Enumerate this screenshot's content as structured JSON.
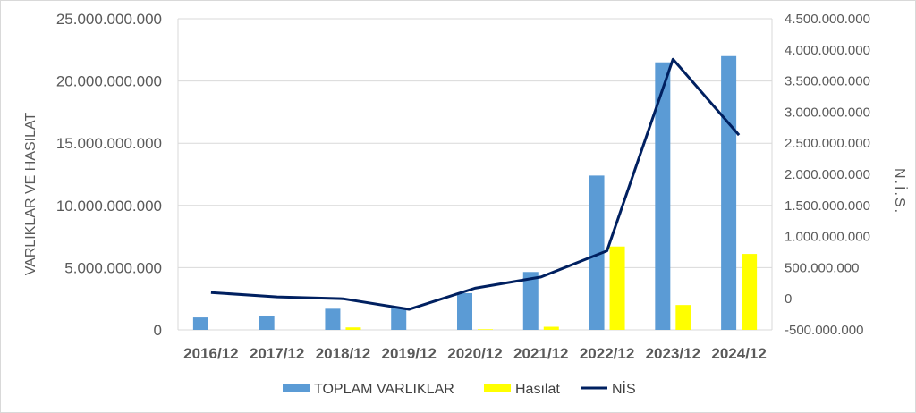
{
  "chart_data": {
    "type": "bar",
    "categories": [
      "2016/12",
      "2017/12",
      "2018/12",
      "2019/12",
      "2020/12",
      "2021/12",
      "2022/12",
      "2023/12",
      "2024/12"
    ],
    "series": [
      {
        "name": "TOPLAM VARLIKLAR",
        "type": "bar",
        "axis": "left",
        "color": "#5b9bd5",
        "values": [
          1000000000,
          1150000000,
          1700000000,
          1800000000,
          2950000000,
          4650000000,
          12400000000,
          21500000000,
          22000000000
        ]
      },
      {
        "name": "Hasılat",
        "type": "bar",
        "axis": "left",
        "color": "#ffff00",
        "values": [
          0,
          0,
          200000000,
          0,
          50000000,
          250000000,
          6700000000,
          2000000000,
          6100000000
        ]
      },
      {
        "name": "NİS",
        "type": "line",
        "axis": "right",
        "color": "#002060",
        "values": [
          100000000,
          30000000,
          0,
          -170000000,
          170000000,
          350000000,
          770000000,
          3850000000,
          2630000000
        ]
      }
    ],
    "ylabel": "VARLIKLAR VE HASILAT",
    "y2label": "N.İ.S.",
    "ylim": [
      0,
      25000000000
    ],
    "y2lim": [
      -500000000,
      4500000000
    ],
    "yticks": [
      "0",
      "5.000.000.000",
      "10.000.000.000",
      "15.000.000.000",
      "20.000.000.000",
      "25.000.000.000"
    ],
    "y2ticks": [
      "-500.000.000",
      "0",
      "500.000.000",
      "1.000.000.000",
      "1.500.000.000",
      "2.000.000.000",
      "2.500.000.000",
      "3.000.000.000",
      "3.500.000.000",
      "4.000.000.000",
      "4.500.000.000"
    ],
    "grid": true,
    "legend": "bottom"
  }
}
